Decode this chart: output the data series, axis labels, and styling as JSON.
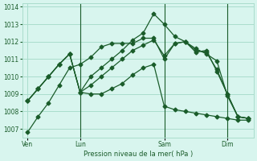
{
  "bg_color": "#d8f5ee",
  "grid_color": "#aaddcc",
  "line_color": "#1a5c2a",
  "title": "Pression niveau de la mer( hPa )",
  "ylim": [
    1006.5,
    1014.2
  ],
  "yticks": [
    1007,
    1008,
    1009,
    1010,
    1011,
    1012,
    1013,
    1014
  ],
  "day_labels": [
    "Ven",
    "Lun",
    "Sam",
    "Dim"
  ],
  "day_positions": [
    0,
    5,
    13,
    19
  ],
  "vline_positions": [
    5,
    13,
    19
  ],
  "series": [
    [
      1006.8,
      1007.7,
      1008.5,
      1009.5,
      1010.5,
      1010.7,
      1011.1,
      1011.7,
      1011.9,
      1011.9,
      1011.9,
      1012.2,
      1012.2,
      1011.0,
      1011.9,
      1012.0,
      1011.4,
      1011.5,
      1010.3,
      1009.0,
      1007.7,
      1007.6
    ],
    [
      1008.6,
      1009.3,
      1010.0,
      1010.7,
      1011.3,
      1009.1,
      1009.0,
      1009.0,
      1009.3,
      1009.6,
      1010.1,
      1010.5,
      1010.7,
      1008.3,
      1008.1,
      1008.0,
      1007.9,
      1007.8,
      1007.7,
      1007.6,
      1007.5,
      1007.5
    ],
    [
      1008.6,
      1009.3,
      1010.0,
      1010.7,
      1011.3,
      1009.1,
      1010.0,
      1010.5,
      1011.0,
      1011.5,
      1012.1,
      1012.5,
      1013.6,
      1013.0,
      1012.3,
      1012.0,
      1011.6,
      1011.3,
      1010.9,
      1008.9,
      1007.7,
      1007.6
    ],
    [
      1008.6,
      1009.3,
      1010.0,
      1010.7,
      1011.3,
      1009.1,
      1009.5,
      1010.0,
      1010.5,
      1011.0,
      1011.5,
      1011.8,
      1012.1,
      1011.2,
      1011.9,
      1012.0,
      1011.5,
      1011.4,
      1010.4,
      1009.0,
      1007.7,
      1007.6
    ]
  ]
}
